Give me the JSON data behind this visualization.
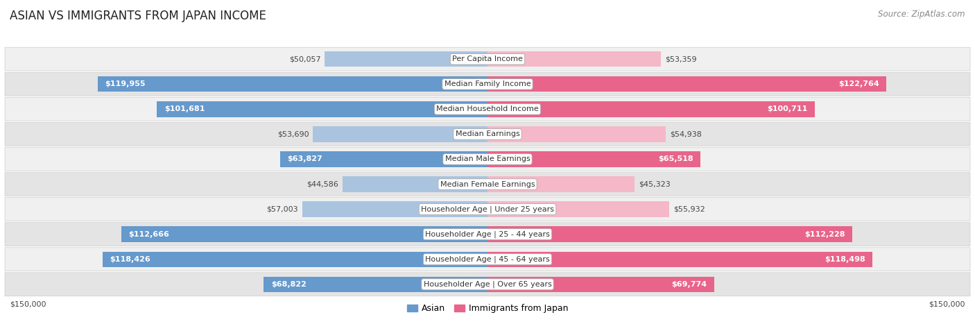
{
  "title": "ASIAN VS IMMIGRANTS FROM JAPAN INCOME",
  "source": "Source: ZipAtlas.com",
  "categories": [
    "Per Capita Income",
    "Median Family Income",
    "Median Household Income",
    "Median Earnings",
    "Median Male Earnings",
    "Median Female Earnings",
    "Householder Age | Under 25 years",
    "Householder Age | 25 - 44 years",
    "Householder Age | 45 - 64 years",
    "Householder Age | Over 65 years"
  ],
  "asian_values": [
    50057,
    119955,
    101681,
    53690,
    63827,
    44586,
    57003,
    112666,
    118426,
    68822
  ],
  "japan_values": [
    53359,
    122764,
    100711,
    54938,
    65518,
    45323,
    55932,
    112228,
    118498,
    69774
  ],
  "asian_labels": [
    "$50,057",
    "$119,955",
    "$101,681",
    "$53,690",
    "$63,827",
    "$44,586",
    "$57,003",
    "$112,666",
    "$118,426",
    "$68,822"
  ],
  "japan_labels": [
    "$53,359",
    "$122,764",
    "$100,711",
    "$54,938",
    "$65,518",
    "$45,323",
    "$55,932",
    "$112,228",
    "$118,498",
    "$69,774"
  ],
  "asian_color_large": "#6699cc",
  "asian_color_small": "#aac4e0",
  "japan_color_large": "#e8648a",
  "japan_color_small": "#f4b8c8",
  "row_bg_light": "#f0f0f0",
  "row_bg_dark": "#e4e4e4",
  "max_value": 150000,
  "large_threshold": 80000,
  "xlabel_left": "$150,000",
  "xlabel_right": "$150,000",
  "title_fontsize": 12,
  "source_fontsize": 8.5,
  "label_fontsize": 8,
  "category_fontsize": 8,
  "legend_fontsize": 9,
  "outside_label_threshold": 60000
}
